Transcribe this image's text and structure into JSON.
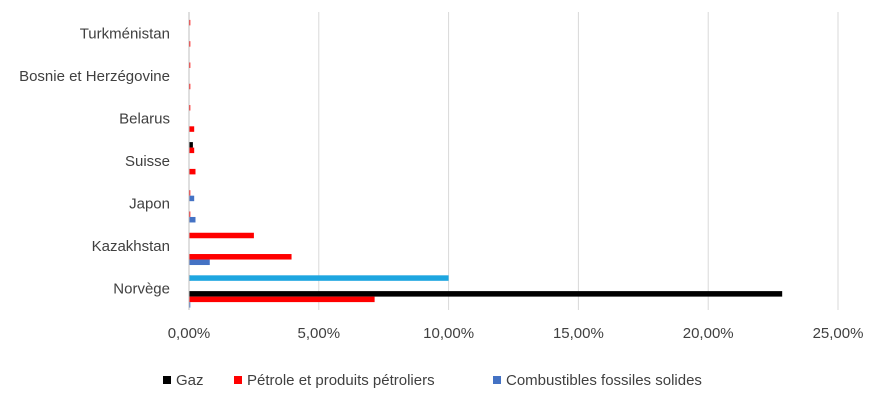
{
  "chart_data": {
    "type": "bar",
    "orientation": "horizontal",
    "categories": [
      "Norvège",
      "",
      "Kazakhstan",
      "",
      "Japon",
      "",
      "Suisse",
      "",
      "Belarus",
      "",
      "Bosnie et Herzégovine",
      "",
      "Turkménistan",
      ""
    ],
    "series": [
      {
        "name": "Gaz",
        "color": "#000000",
        "values": [
          22.85,
          0,
          0,
          0,
          0,
          0,
          0,
          0.15,
          0,
          0,
          0,
          0,
          0,
          0
        ]
      },
      {
        "name": "Pétrole et produits pétroliers",
        "color": "#ff0000",
        "values": [
          7.15,
          0.05,
          3.95,
          2.5,
          0.05,
          0.05,
          0.25,
          0.2,
          0.2,
          0.05,
          0.05,
          0.05,
          0.05,
          0.05
        ]
      },
      {
        "name": "Combustibles fossiles solides",
        "color": "#4472c4",
        "values": [
          0.05,
          0,
          0.8,
          0,
          0.25,
          0.2,
          0,
          0,
          0,
          0,
          0,
          0,
          0,
          0
        ]
      }
    ],
    "extra_series": [
      {
        "name": "",
        "color": "#1ea6e0",
        "values": [
          0,
          10.0,
          0,
          0,
          0,
          0,
          0,
          0,
          0,
          0,
          0,
          0,
          0,
          0
        ]
      }
    ],
    "xlim": [
      0,
      25
    ],
    "x_ticks": [
      "0,00%",
      "5,00%",
      "10,00%",
      "15,00%",
      "20,00%",
      "25,00%"
    ],
    "x_tick_values": [
      0,
      5,
      10,
      15,
      20,
      25
    ],
    "grid": true,
    "legend_position": "bottom",
    "title": "",
    "xlabel": "",
    "ylabel": ""
  }
}
